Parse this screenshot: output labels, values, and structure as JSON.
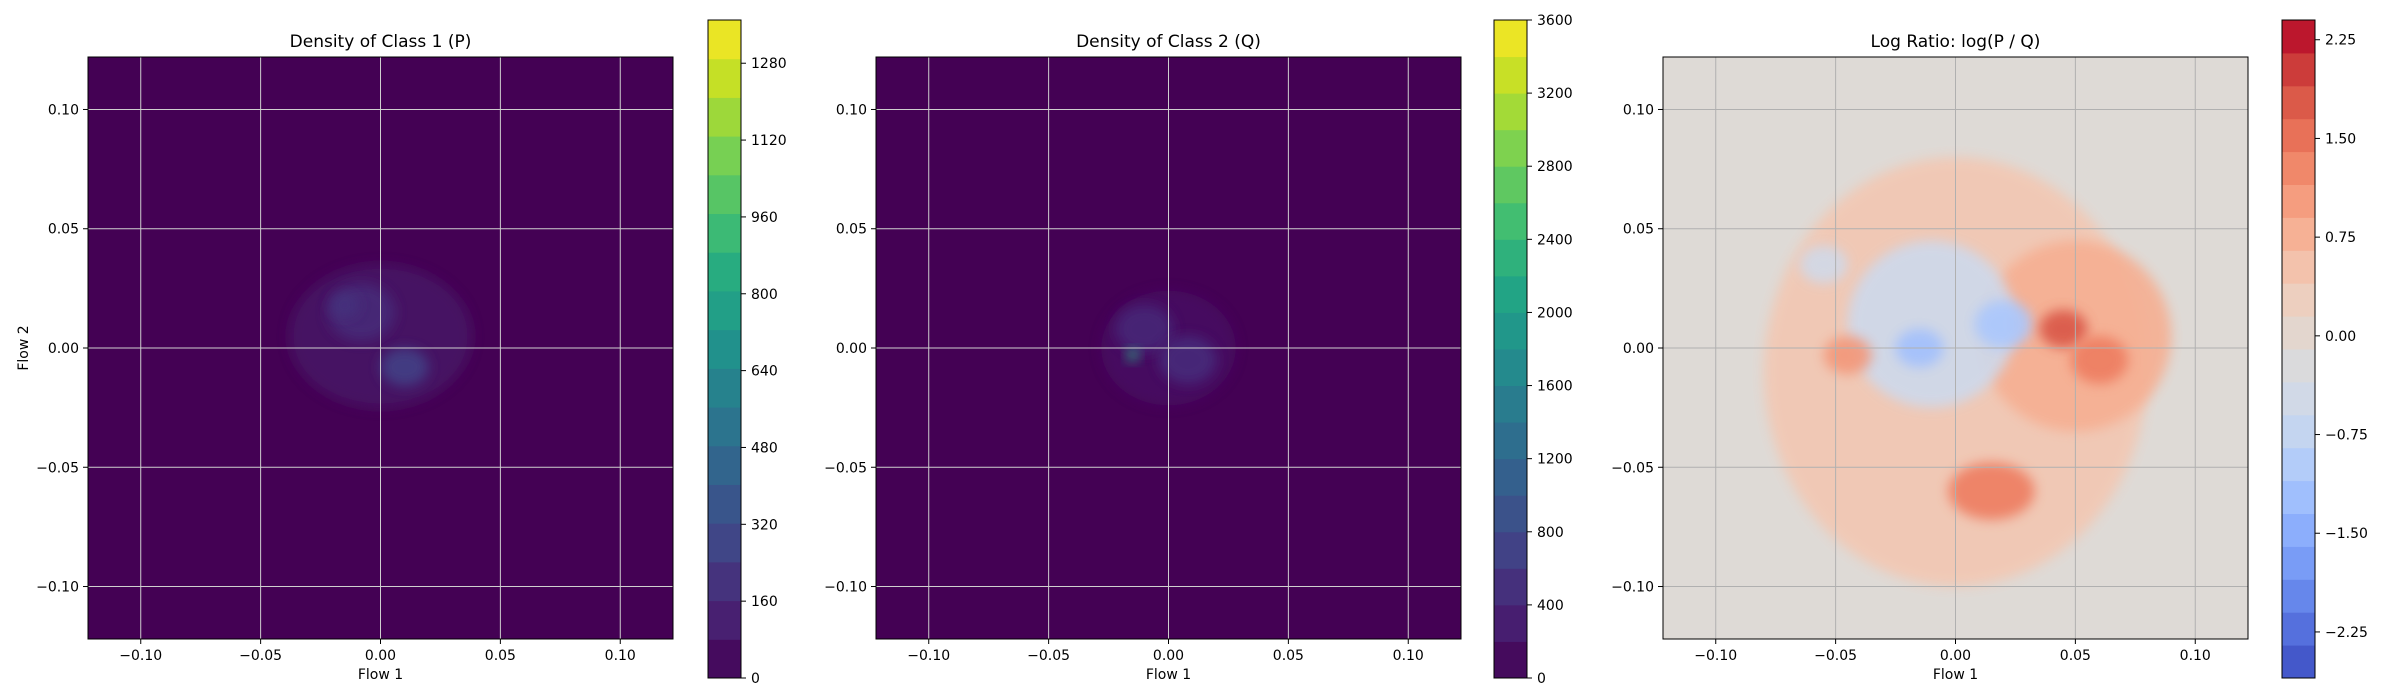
{
  "chart_data": [
    {
      "type": "heatmap",
      "title": "Density of Class 1 (P)",
      "xlabel": "Flow 1",
      "ylabel": "Flow 2",
      "xlim": [
        -0.122,
        0.122
      ],
      "ylim": [
        -0.122,
        0.122
      ],
      "xticks": [
        -0.1,
        -0.05,
        0.0,
        0.05,
        0.1
      ],
      "xtick_labels": [
        "−0.10",
        "−0.05",
        "0.00",
        "0.05",
        "0.10"
      ],
      "yticks": [
        -0.1,
        -0.05,
        0.0,
        0.05,
        0.1
      ],
      "ytick_labels": [
        "−0.10",
        "−0.05",
        "0.00",
        "0.05",
        "0.10"
      ],
      "grid": true,
      "colormap": "viridis",
      "colorbar": {
        "ticks": [
          0,
          160,
          320,
          480,
          640,
          800,
          960,
          1120,
          1280
        ],
        "range": [
          0,
          1370
        ],
        "levels": 17
      },
      "background_color": "#440154",
      "blobs": [
        {
          "x": 0.0,
          "y": 0.005,
          "rx": 0.038,
          "ry": 0.03,
          "value": 70
        },
        {
          "x": -0.008,
          "y": 0.015,
          "rx": 0.014,
          "ry": 0.012,
          "value": 160
        },
        {
          "x": 0.01,
          "y": -0.008,
          "rx": 0.01,
          "ry": 0.008,
          "value": 260
        },
        {
          "x": -0.015,
          "y": 0.018,
          "rx": 0.006,
          "ry": 0.005,
          "value": 200
        }
      ]
    },
    {
      "type": "heatmap",
      "title": "Density of Class 2 (Q)",
      "xlabel": "Flow 1",
      "ylabel": "",
      "xlim": [
        -0.122,
        0.122
      ],
      "ylim": [
        -0.122,
        0.122
      ],
      "xticks": [
        -0.1,
        -0.05,
        0.0,
        0.05,
        0.1
      ],
      "xtick_labels": [
        "−0.10",
        "−0.05",
        "0.00",
        "0.05",
        "0.10"
      ],
      "yticks": [
        -0.1,
        -0.05,
        0.0,
        0.05,
        0.1
      ],
      "ytick_labels": [
        "−0.10",
        "−0.05",
        "0.00",
        "0.05",
        "0.10"
      ],
      "grid": true,
      "colormap": "viridis",
      "colorbar": {
        "ticks": [
          0,
          400,
          800,
          1200,
          1600,
          2000,
          2400,
          2800,
          3200,
          3600
        ],
        "range": [
          0,
          3600
        ],
        "levels": 18
      },
      "background_color": "#440154",
      "blobs": [
        {
          "x": 0.0,
          "y": 0.0,
          "rx": 0.028,
          "ry": 0.024,
          "value": 150
        },
        {
          "x": -0.01,
          "y": 0.008,
          "rx": 0.012,
          "ry": 0.01,
          "value": 400
        },
        {
          "x": 0.008,
          "y": -0.005,
          "rx": 0.012,
          "ry": 0.01,
          "value": 450
        },
        {
          "x": -0.015,
          "y": -0.003,
          "rx": 0.0025,
          "ry": 0.0025,
          "value": 2200
        }
      ]
    },
    {
      "type": "heatmap",
      "title": "Log Ratio: log(P / Q)",
      "xlabel": "Flow 1",
      "ylabel": "",
      "xlim": [
        -0.122,
        0.122
      ],
      "ylim": [
        -0.122,
        0.122
      ],
      "xticks": [
        -0.1,
        -0.05,
        0.0,
        0.05,
        0.1
      ],
      "xtick_labels": [
        "−0.10",
        "−0.05",
        "0.00",
        "0.05",
        "0.10"
      ],
      "yticks": [
        -0.1,
        -0.05,
        0.0,
        0.05,
        0.1
      ],
      "ytick_labels": [
        "−0.10",
        "−0.05",
        "0.00",
        "0.05",
        "0.10"
      ],
      "grid": true,
      "colormap": "coolwarm",
      "colorbar": {
        "ticks": [
          -2.25,
          -1.5,
          -0.75,
          0.0,
          0.75,
          1.5,
          2.25
        ],
        "tick_labels": [
          "−2.25",
          "−1.50",
          "−0.75",
          "0.00",
          "0.75",
          "1.50",
          "2.25"
        ],
        "range": [
          -2.6,
          2.4
        ],
        "levels": 20
      },
      "background_color": "#dedad6",
      "blobs": [
        {
          "x": 0.0,
          "y": -0.01,
          "rx": 0.08,
          "ry": 0.09,
          "value": 0.45
        },
        {
          "x": 0.05,
          "y": 0.005,
          "rx": 0.04,
          "ry": 0.04,
          "value": 0.8
        },
        {
          "x": -0.01,
          "y": 0.01,
          "rx": 0.035,
          "ry": 0.035,
          "value": -0.6
        },
        {
          "x": 0.02,
          "y": 0.01,
          "rx": 0.012,
          "ry": 0.01,
          "value": -1.1
        },
        {
          "x": -0.015,
          "y": 0.0,
          "rx": 0.01,
          "ry": 0.008,
          "value": -1.2
        },
        {
          "x": 0.045,
          "y": 0.008,
          "rx": 0.01,
          "ry": 0.008,
          "value": 1.8
        },
        {
          "x": 0.06,
          "y": -0.005,
          "rx": 0.012,
          "ry": 0.01,
          "value": 1.4
        },
        {
          "x": 0.015,
          "y": -0.06,
          "rx": 0.018,
          "ry": 0.012,
          "value": 1.4
        },
        {
          "x": -0.045,
          "y": -0.003,
          "rx": 0.01,
          "ry": 0.008,
          "value": 1.1
        },
        {
          "x": -0.055,
          "y": 0.035,
          "rx": 0.01,
          "ry": 0.008,
          "value": -0.5
        }
      ]
    }
  ]
}
